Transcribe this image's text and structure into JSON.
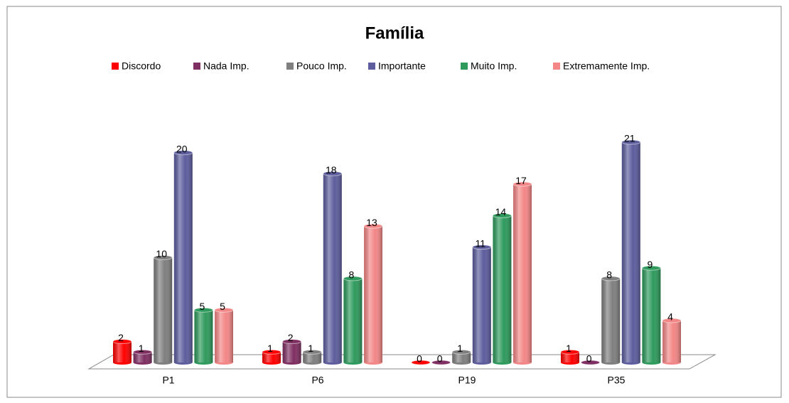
{
  "chart_data": {
    "type": "bar3d",
    "title": "Família",
    "categories": [
      "P1",
      "P6",
      "P19",
      "P35"
    ],
    "series": [
      {
        "name": "Discordo",
        "color": "#ff0000",
        "values": [
          2,
          1,
          0,
          1
        ]
      },
      {
        "name": "Nada Imp.",
        "color": "#7f2f62",
        "values": [
          1,
          2,
          0,
          0
        ]
      },
      {
        "name": "Pouco Imp.",
        "color": "#7f7f7f",
        "values": [
          10,
          1,
          1,
          8
        ]
      },
      {
        "name": "Importante",
        "color": "#5d5d9e",
        "values": [
          20,
          18,
          11,
          21
        ]
      },
      {
        "name": "Muito Imp.",
        "color": "#2e9a5c",
        "values": [
          5,
          8,
          14,
          9
        ]
      },
      {
        "name": "Extremamente Imp.",
        "color": "#f38686",
        "values": [
          5,
          13,
          17,
          4
        ]
      }
    ],
    "legend": "top"
  }
}
